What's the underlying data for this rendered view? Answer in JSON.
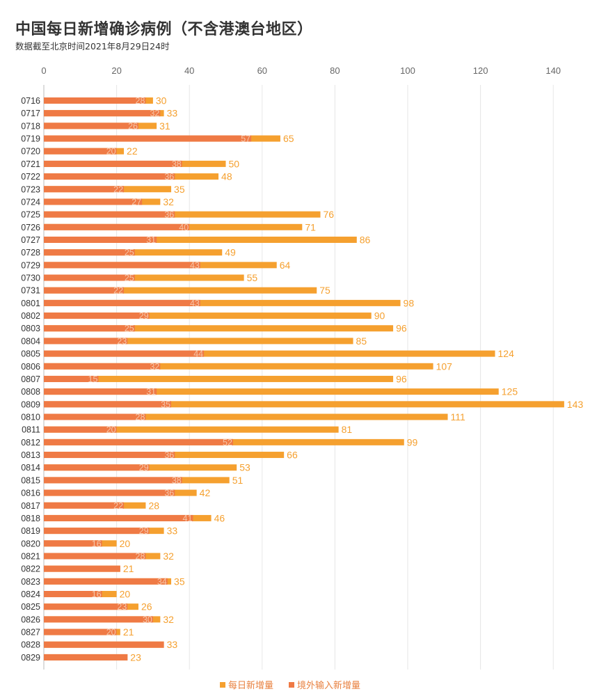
{
  "header": {
    "title": "中国每日新增确诊病例（不含港澳台地区）",
    "subtitle": "数据截至北京时间2021年8月29日24时"
  },
  "colors": {
    "daily": "#f5a02f",
    "imported": "#ef7a45",
    "grid": "#e6e6e6",
    "axis": "#bbbbbb"
  },
  "legend": [
    {
      "label": "每日新增量",
      "color": "#f5a02f"
    },
    {
      "label": "境外输入新增量",
      "color": "#ef7a45"
    }
  ],
  "chart_data": {
    "type": "bar",
    "orientation": "horizontal",
    "xlim": [
      0,
      150
    ],
    "xticks": [
      0,
      20,
      40,
      60,
      80,
      100,
      120,
      140
    ],
    "grid": true,
    "legend_position": "bottom",
    "categories": [
      "0716",
      "0717",
      "0718",
      "0719",
      "0720",
      "0721",
      "0722",
      "0723",
      "0724",
      "0725",
      "0726",
      "0727",
      "0728",
      "0729",
      "0730",
      "0731",
      "0801",
      "0802",
      "0803",
      "0804",
      "0805",
      "0806",
      "0807",
      "0808",
      "0809",
      "0810",
      "0811",
      "0812",
      "0813",
      "0814",
      "0815",
      "0816",
      "0817",
      "0818",
      "0819",
      "0820",
      "0821",
      "0822",
      "0823",
      "0824",
      "0825",
      "0826",
      "0827",
      "0828",
      "0829"
    ],
    "series": [
      {
        "name": "每日新增量",
        "values": [
          30,
          33,
          31,
          65,
          22,
          50,
          48,
          35,
          32,
          76,
          71,
          86,
          49,
          64,
          55,
          75,
          98,
          90,
          96,
          85,
          124,
          107,
          96,
          125,
          143,
          111,
          81,
          99,
          66,
          53,
          51,
          42,
          28,
          46,
          33,
          20,
          32,
          21,
          35,
          20,
          26,
          32,
          21,
          33,
          23
        ]
      },
      {
        "name": "境外输入新增量",
        "values": [
          28,
          32,
          26,
          57,
          20,
          38,
          36,
          22,
          27,
          36,
          40,
          31,
          25,
          43,
          25,
          22,
          43,
          29,
          25,
          23,
          44,
          32,
          15,
          31,
          35,
          28,
          20,
          52,
          36,
          29,
          38,
          36,
          22,
          41,
          29,
          16,
          28,
          21,
          34,
          16,
          23,
          30,
          20,
          33,
          23
        ]
      }
    ]
  }
}
